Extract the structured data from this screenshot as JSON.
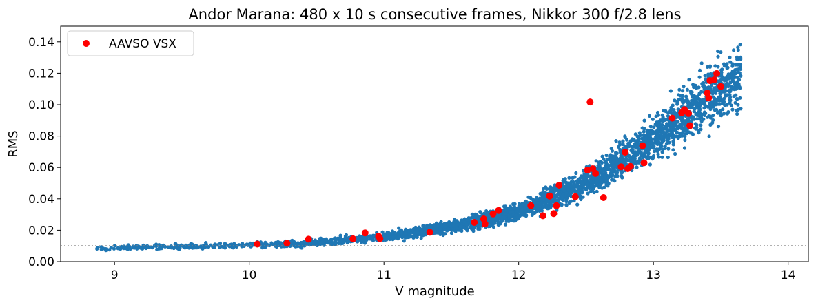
{
  "chart_data": {
    "type": "scatter",
    "title": "Andor Marana: 480 x 10 s consecutive frames, Nikkor 300 f/2.8 lens",
    "xlabel": "V magnitude",
    "ylabel": "RMS",
    "xlim": [
      8.6,
      14.15
    ],
    "ylim": [
      0.0,
      0.15
    ],
    "xticks": [
      "9",
      "10",
      "11",
      "12",
      "13",
      "14"
    ],
    "xtick_values": [
      9,
      10,
      11,
      12,
      13,
      14
    ],
    "yticks": [
      "0.00",
      "0.02",
      "0.04",
      "0.06",
      "0.08",
      "0.10",
      "0.12",
      "0.14"
    ],
    "ytick_values": [
      0.0,
      0.02,
      0.04,
      0.06,
      0.08,
      0.1,
      0.12,
      0.14
    ],
    "grid": false,
    "legend": {
      "location": "top-left",
      "entries": [
        "AAVSO VSX"
      ]
    },
    "reference_line": {
      "y": 0.01,
      "style": "dotted",
      "color": "#808080"
    },
    "colors": {
      "field_stars": "#1f77b4",
      "vsx": "#ff0000"
    },
    "field_stars_trend": {
      "x": [
        8.85,
        9.0,
        9.5,
        10.0,
        10.5,
        11.0,
        11.5,
        12.0,
        12.5,
        13.0,
        13.5,
        13.85
      ],
      "y": [
        0.0085,
        0.009,
        0.0095,
        0.0105,
        0.012,
        0.016,
        0.022,
        0.032,
        0.05,
        0.078,
        0.112,
        0.125
      ]
    },
    "series": [
      {
        "name": "AAVSO VSX",
        "points": [
          {
            "x": 10.06,
            "y": 0.0112
          },
          {
            "x": 10.28,
            "y": 0.0117
          },
          {
            "x": 10.44,
            "y": 0.0143
          },
          {
            "x": 10.77,
            "y": 0.0145
          },
          {
            "x": 10.86,
            "y": 0.0183
          },
          {
            "x": 10.96,
            "y": 0.0162
          },
          {
            "x": 10.97,
            "y": 0.0147
          },
          {
            "x": 11.34,
            "y": 0.0187
          },
          {
            "x": 11.67,
            "y": 0.025
          },
          {
            "x": 11.74,
            "y": 0.0272
          },
          {
            "x": 11.75,
            "y": 0.024
          },
          {
            "x": 11.81,
            "y": 0.0304
          },
          {
            "x": 11.85,
            "y": 0.0326
          },
          {
            "x": 12.09,
            "y": 0.0356
          },
          {
            "x": 12.18,
            "y": 0.0292
          },
          {
            "x": 12.23,
            "y": 0.0418
          },
          {
            "x": 12.26,
            "y": 0.0306
          },
          {
            "x": 12.28,
            "y": 0.0356
          },
          {
            "x": 12.3,
            "y": 0.0487
          },
          {
            "x": 12.42,
            "y": 0.0413
          },
          {
            "x": 12.51,
            "y": 0.0583
          },
          {
            "x": 12.53,
            "y": 0.1017
          },
          {
            "x": 12.55,
            "y": 0.0592
          },
          {
            "x": 12.57,
            "y": 0.0562
          },
          {
            "x": 12.63,
            "y": 0.0408
          },
          {
            "x": 12.76,
            "y": 0.0604
          },
          {
            "x": 12.79,
            "y": 0.0697
          },
          {
            "x": 12.81,
            "y": 0.0592
          },
          {
            "x": 12.83,
            "y": 0.0606
          },
          {
            "x": 12.92,
            "y": 0.0738
          },
          {
            "x": 12.93,
            "y": 0.063
          },
          {
            "x": 13.14,
            "y": 0.0914
          },
          {
            "x": 13.21,
            "y": 0.0948
          },
          {
            "x": 13.23,
            "y": 0.0968
          },
          {
            "x": 13.26,
            "y": 0.0944
          },
          {
            "x": 13.27,
            "y": 0.0866
          },
          {
            "x": 13.4,
            "y": 0.1074
          },
          {
            "x": 13.41,
            "y": 0.1043
          },
          {
            "x": 13.42,
            "y": 0.1153
          },
          {
            "x": 13.45,
            "y": 0.1158
          },
          {
            "x": 13.47,
            "y": 0.1198
          },
          {
            "x": 13.5,
            "y": 0.1116
          }
        ]
      }
    ]
  }
}
